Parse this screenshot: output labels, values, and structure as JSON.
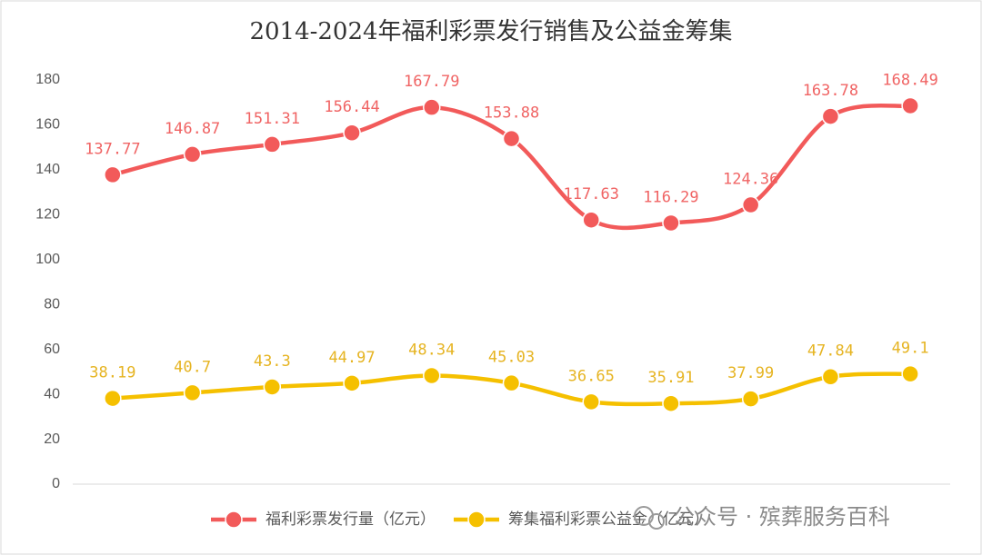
{
  "chart_data": {
    "type": "line",
    "title": "2014-2024年福利彩票发行销售及公益金筹集",
    "categories": [
      null,
      null,
      null,
      null,
      null,
      null,
      null,
      null,
      null,
      null,
      null
    ],
    "series": [
      {
        "name": "福利彩票发行量（亿元）",
        "color": "#f25a5a",
        "label_color": "#f06464",
        "values": [
          137.77,
          146.87,
          151.31,
          156.44,
          167.79,
          153.88,
          117.63,
          116.29,
          124.36,
          163.78,
          168.49
        ]
      },
      {
        "name": "筹集福利彩票公益金（亿元）",
        "color": "#f5c000",
        "label_color": "#e6b422",
        "values": [
          38.19,
          40.7,
          43.3,
          44.97,
          48.34,
          45.03,
          36.65,
          35.91,
          37.99,
          47.84,
          49.1
        ]
      }
    ],
    "ylim": [
      0,
      180
    ],
    "yticks": [
      0,
      20,
      40,
      60,
      80,
      100,
      120,
      140,
      160,
      180
    ],
    "smooth": true,
    "grid": false,
    "legend": "bottom",
    "watermark": "公众号 · 殡葬服务百科"
  }
}
